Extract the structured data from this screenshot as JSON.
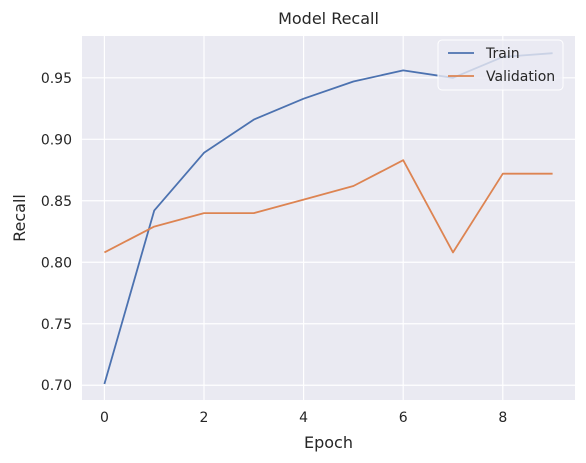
{
  "chart_data": {
    "type": "line",
    "title": "Model Recall",
    "xlabel": "Epoch",
    "ylabel": "Recall",
    "x": [
      0,
      1,
      2,
      3,
      4,
      5,
      6,
      7,
      8,
      9
    ],
    "xlim": [
      -0.45,
      9.45
    ],
    "ylim": [
      0.688,
      0.984
    ],
    "xticks": [
      0,
      2,
      4,
      6,
      8
    ],
    "yticks": [
      0.7,
      0.75,
      0.8,
      0.85,
      0.9,
      0.95
    ],
    "ytick_labels": [
      "0.70",
      "0.75",
      "0.80",
      "0.85",
      "0.90",
      "0.95"
    ],
    "grid": true,
    "legend_position": "top-right",
    "series": [
      {
        "name": "Train",
        "color": "#4c72b0",
        "values": [
          0.701,
          0.842,
          0.889,
          0.916,
          0.933,
          0.947,
          0.956,
          0.95,
          0.967,
          0.97
        ]
      },
      {
        "name": "Validation",
        "color": "#dd8452",
        "values": [
          0.808,
          0.829,
          0.84,
          0.84,
          0.851,
          0.862,
          0.883,
          0.808,
          0.872,
          0.872
        ]
      }
    ],
    "colors": {
      "plot_background": "#eaeaf2",
      "grid": "#ffffff",
      "text": "#262626"
    }
  }
}
